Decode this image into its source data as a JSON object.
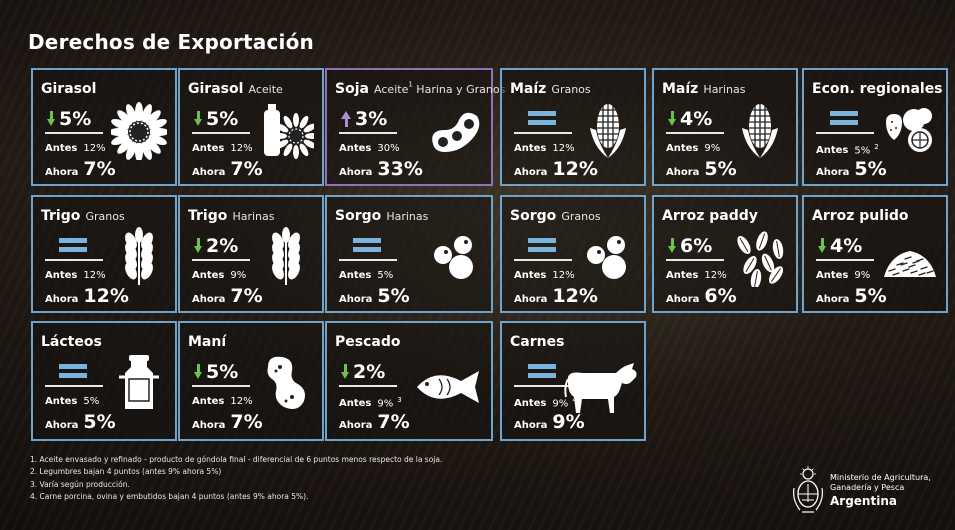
{
  "title": "Derechos de Exportación",
  "cards": [
    {
      "name": "Girasol",
      "sub": "",
      "note": "",
      "change": "5%",
      "dir": "down",
      "antes": "12%",
      "antes_note": "",
      "ahora": "7%",
      "icon": "sunflower-icon"
    },
    {
      "name": "Girasol",
      "sub": "Aceite",
      "note": "",
      "change": "5%",
      "dir": "down",
      "antes": "12%",
      "antes_note": "",
      "ahora": "7%",
      "icon": "sunflower-oil-icon"
    },
    {
      "name": "Soja",
      "sub": "Aceite",
      "note": "1",
      "sub2": " Harina y Granos",
      "change": "3%",
      "dir": "up",
      "antes": "30%",
      "antes_note": "",
      "ahora": "33%",
      "icon": "soybean-pod-icon"
    },
    {
      "name": "Maíz",
      "sub": "Granos",
      "note": "",
      "change": "",
      "dir": "equal",
      "antes": "12%",
      "antes_note": "",
      "ahora": "12%",
      "icon": "corn-icon"
    },
    {
      "name": "Maíz",
      "sub": "Harinas",
      "note": "",
      "change": "4%",
      "dir": "down",
      "antes": "9%",
      "antes_note": "",
      "ahora": "5%",
      "icon": "corn-icon"
    },
    {
      "name": "Econ. regionales",
      "sub": "",
      "note": "",
      "change": "",
      "dir": "equal",
      "antes": "5%",
      "antes_note": "2",
      "ahora": "5%",
      "icon": "fruits-icon"
    },
    {
      "name": "Trigo",
      "sub": "Granos",
      "note": "",
      "change": "",
      "dir": "equal",
      "antes": "12%",
      "antes_note": "",
      "ahora": "12%",
      "icon": "wheat-icon"
    },
    {
      "name": "Trigo",
      "sub": "Harinas",
      "note": "",
      "change": "2%",
      "dir": "down",
      "antes": "9%",
      "antes_note": "",
      "ahora": "7%",
      "icon": "wheat-icon"
    },
    {
      "name": "Sorgo",
      "sub": "Harinas",
      "note": "",
      "change": "",
      "dir": "equal",
      "antes": "5%",
      "antes_note": "",
      "ahora": "5%",
      "icon": "sorghum-grains-icon"
    },
    {
      "name": "Sorgo",
      "sub": "Granos",
      "note": "",
      "change": "",
      "dir": "equal",
      "antes": "12%",
      "antes_note": "",
      "ahora": "12%",
      "icon": "sorghum-grains-icon"
    },
    {
      "name": "Arroz paddy",
      "sub": "",
      "note": "",
      "change": "6%",
      "dir": "down",
      "antes": "12%",
      "antes_note": "",
      "ahora": "6%",
      "icon": "rice-paddy-icon"
    },
    {
      "name": "Arroz pulido",
      "sub": "",
      "note": "",
      "change": "4%",
      "dir": "down",
      "antes": "9%",
      "antes_note": "",
      "ahora": "5%",
      "icon": "rice-pile-icon"
    },
    {
      "name": "Lácteos",
      "sub": "",
      "note": "",
      "change": "",
      "dir": "equal",
      "antes": "5%",
      "antes_note": "",
      "ahora": "5%",
      "icon": "milk-can-icon"
    },
    {
      "name": "Maní",
      "sub": "",
      "note": "",
      "change": "5%",
      "dir": "down",
      "antes": "12%",
      "antes_note": "",
      "ahora": "7%",
      "icon": "peanut-icon"
    },
    {
      "name": "Pescado",
      "sub": "",
      "note": "",
      "change": "2%",
      "dir": "down",
      "antes": "9%",
      "antes_note": "3",
      "ahora": "7%",
      "icon": "fish-icon"
    },
    {
      "name": "Carnes",
      "sub": "",
      "note": "",
      "change": "",
      "dir": "equal",
      "antes": "9%",
      "antes_note": "4",
      "ahora": "9%",
      "icon": "cow-icon"
    }
  ],
  "labels": {
    "antes": "Antes",
    "ahora": "Ahora"
  },
  "footnotes": [
    "1. Aceite envasado y refinado - producto de góndola final - diferencial de 6 puntos menos respecto de la soja.",
    "2. Legumbres bajan 4 puntos (antes 9% ahora 5%)",
    "3. Varía según producción.",
    "4. Carne porcina, ovina y embutidos bajan 4 puntos (antes 9% ahora 5%)."
  ],
  "org": {
    "line1": "Ministerio de Agricultura,",
    "line2": "Ganadería y Pesca",
    "country": "Argentina"
  },
  "colors": {
    "border": "#6fa3c9",
    "soja_border": "#8b74b8",
    "down": "#6ec24a",
    "up": "#a88fd6",
    "equal": "#7ab3dc"
  }
}
